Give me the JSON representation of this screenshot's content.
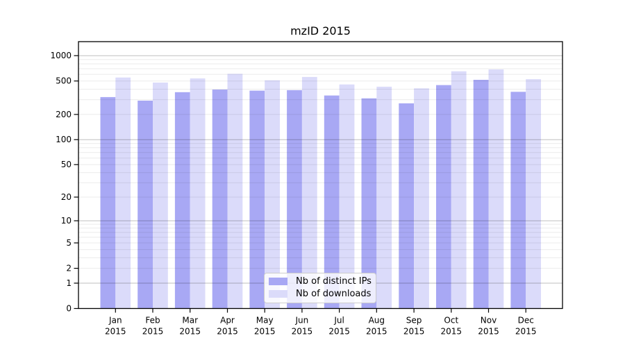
{
  "title": "mzID 2015",
  "chart_data": {
    "type": "bar",
    "title": "mzID 2015",
    "categories": [
      "Jan",
      "Feb",
      "Mar",
      "Apr",
      "May",
      "Jun",
      "Jul",
      "Aug",
      "Sep",
      "Oct",
      "Nov",
      "Dec"
    ],
    "x_tick_year": "2015",
    "series": [
      {
        "name": "Nb of distinct IPs",
        "color": "#a8a8f4",
        "values": [
          322,
          292,
          368,
          396,
          384,
          389,
          336,
          311,
          271,
          447,
          517,
          372
        ]
      },
      {
        "name": "Nb of downloads",
        "color": "#dbdbfa",
        "values": [
          550,
          479,
          537,
          608,
          510,
          558,
          455,
          428,
          409,
          652,
          687,
          526
        ]
      }
    ],
    "yscale": "log1p",
    "ylim": [
      0,
      1468
    ],
    "yticks": [
      0,
      1,
      2,
      5,
      10,
      20,
      50,
      100,
      200,
      500,
      1000
    ],
    "major_gridlines": [
      1,
      10,
      100,
      1000
    ],
    "minor_gridlines": [
      2,
      3,
      4,
      5,
      6,
      7,
      8,
      9,
      20,
      30,
      40,
      50,
      60,
      70,
      80,
      90,
      200,
      300,
      400,
      500,
      600,
      700,
      800,
      900
    ],
    "grid": true,
    "legend_position": "lower center"
  },
  "colors": {
    "axis": "#000000",
    "text": "#000000",
    "major_grid": "#c7c7c7",
    "minor_grid": "#ebebeb",
    "background": "#ffffff"
  }
}
